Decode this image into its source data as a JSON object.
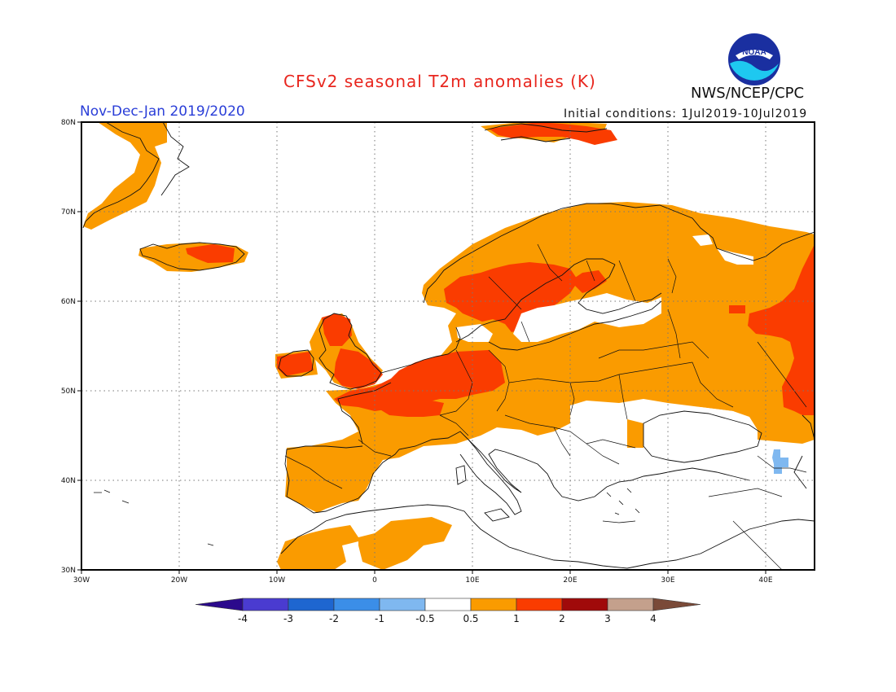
{
  "header": {
    "title": "CFSv2 seasonal T2m anomalies (K)",
    "period": "Nov-Dec-Jan 2019/2020",
    "initial_conditions": "Initial conditions: 1Jul2019-10Jul2019",
    "agency": "NWS/NCEP/CPC",
    "logo_text": "NOAA"
  },
  "map": {
    "lon_range": [
      -30,
      45
    ],
    "lat_range": [
      30,
      80
    ],
    "lon_ticks": [
      "30W",
      "20W",
      "10W",
      "0",
      "10E",
      "20E",
      "30E",
      "40E"
    ],
    "lat_ticks": [
      "30N",
      "40N",
      "50N",
      "60N",
      "70N",
      "80N"
    ],
    "grid": "dotted"
  },
  "colorbar": {
    "ticks": [
      "-4",
      "-3",
      "-2",
      "-1",
      "-0.5",
      "0.5",
      "1",
      "2",
      "3",
      "4"
    ],
    "colors": [
      "#2b0a8c",
      "#4a3bd0",
      "#1e66d0",
      "#3b8ee8",
      "#7fb8f0",
      "#ffffff",
      "#fa9b00",
      "#fa3c00",
      "#a00a0a",
      "#c4a08c",
      "#7a4a38"
    ]
  },
  "anomaly_colors": {
    "warm_0_5_to_1": "#fa9b00",
    "warm_1_to_2": "#fa3c00",
    "cool_minus1_to_minus0_5": "#7fb8f0"
  }
}
